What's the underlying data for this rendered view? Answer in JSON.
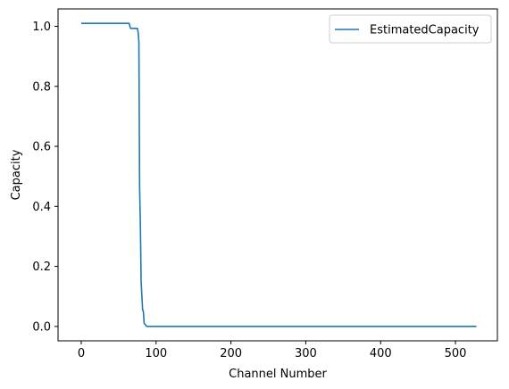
{
  "chart_data": {
    "type": "line",
    "title": "",
    "xlabel": "Channel Number",
    "ylabel": "Capacity",
    "xlim": [
      -31,
      556
    ],
    "ylim": [
      -0.048,
      1.058
    ],
    "xticks": [
      0,
      100,
      200,
      300,
      400,
      500
    ],
    "yticks": [
      0.0,
      0.2,
      0.4,
      0.6,
      0.8,
      1.0
    ],
    "xtick_labels": [
      "0",
      "100",
      "200",
      "300",
      "400",
      "500"
    ],
    "ytick_labels": [
      "0.0",
      "0.2",
      "0.4",
      "0.6",
      "0.8",
      "1.0"
    ],
    "grid": false,
    "legend_position": "top-right",
    "series": [
      {
        "name": "EstimatedCapacity",
        "color": "#1f77b4",
        "x": [
          0,
          20,
          40,
          64,
          65,
          66,
          75,
          76,
          77,
          78,
          79,
          80,
          82,
          83,
          84,
          86,
          87,
          88,
          100,
          200,
          300,
          400,
          500,
          528
        ],
        "y": [
          1.01,
          1.01,
          1.01,
          1.01,
          1.0,
          0.993,
          0.993,
          0.98,
          0.95,
          0.46,
          0.34,
          0.15,
          0.055,
          0.05,
          0.01,
          0.005,
          0.001,
          0.0,
          0.0,
          0.0,
          0.0,
          0.0,
          0.0,
          0.0
        ]
      }
    ]
  }
}
